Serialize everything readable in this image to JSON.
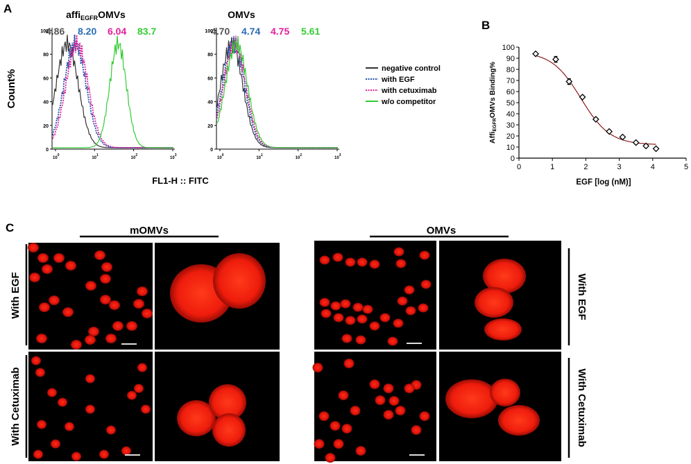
{
  "panel_labels": {
    "a": "A",
    "b": "B",
    "c": "C"
  },
  "panel_a": {
    "x_axis_label": "FL1-H :: FITC",
    "y_axis_label": "Count%",
    "legend": [
      {
        "label": "negative control",
        "color": "#333333",
        "dash": "solid"
      },
      {
        "label": "with EGF",
        "color": "#1f4fa8",
        "dash": "dotted"
      },
      {
        "label": "with cetuximab",
        "color": "#e0209a",
        "dash": "dotted"
      },
      {
        "label": "w/o competitor",
        "color": "#33cc33",
        "dash": "solid"
      }
    ],
    "histograms": [
      {
        "title_main": "affi",
        "title_sub": "EGFR",
        "title_end": "OMVs",
        "values": [
          {
            "text": "4.86",
            "color": "#555555"
          },
          {
            "text": "8.20",
            "color": "#2a6db5"
          },
          {
            "text": "6.04",
            "color": "#e0209a"
          },
          {
            "text": "83.7",
            "color": "#33cc33"
          }
        ],
        "y_ticks": [
          "100",
          "80",
          "60",
          "40",
          "20",
          "0"
        ],
        "x_ticks": [
          "10",
          "10",
          "10",
          "10"
        ],
        "x_tick_exponents": [
          "0",
          "1",
          "2",
          "3"
        ],
        "peaks_log": [
          0.3,
          0.5,
          0.55,
          1.6
        ]
      },
      {
        "title_main": "OMVs",
        "title_sub": "",
        "title_end": "",
        "values": [
          {
            "text": "4.70",
            "color": "#555555"
          },
          {
            "text": "4.74",
            "color": "#2a6db5"
          },
          {
            "text": "4.75",
            "color": "#e0209a"
          },
          {
            "text": "5.61",
            "color": "#33cc33"
          }
        ],
        "y_ticks": [
          "100",
          "80",
          "60",
          "40",
          "20",
          "0"
        ],
        "x_ticks": [
          "10",
          "10",
          "10",
          "10"
        ],
        "x_tick_exponents": [
          "0",
          "1",
          "2",
          "3"
        ],
        "peaks_log": [
          0.3,
          0.35,
          0.38,
          0.42
        ]
      }
    ]
  },
  "chart_data": {
    "type": "scatter",
    "title": "",
    "xlabel": "EGF [log (nM)]",
    "ylabel_main": "Affi",
    "ylabel_sub": "EGFR",
    "ylabel_end": "OMVs Binding%",
    "xlim": [
      0,
      5
    ],
    "ylim": [
      0,
      100
    ],
    "x_ticks": [
      "0",
      "1",
      "2",
      "3",
      "4",
      "5"
    ],
    "y_ticks": [
      "0",
      "10",
      "20",
      "30",
      "40",
      "50",
      "60",
      "70",
      "80",
      "90",
      "100"
    ],
    "x": [
      0.5,
      1.1,
      1.5,
      1.9,
      2.3,
      2.7,
      3.1,
      3.5,
      3.8,
      4.1
    ],
    "y": [
      94,
      89,
      69,
      55,
      35,
      24,
      19,
      14,
      11,
      8.5
    ],
    "err": [
      0.5,
      2.5,
      2.5,
      1.0,
      1.0,
      1.0,
      1.0,
      1.0,
      1.0,
      1.0
    ],
    "fit": {
      "top": 96,
      "bottom": 12,
      "logIC50": 1.85,
      "hill": 1.0,
      "color": "#8b1a1a"
    }
  },
  "panel_c": {
    "group_left": "mOMVs",
    "group_right": "OMVs",
    "row_top": "With EGF",
    "row_bottom": "With Cetuximab"
  }
}
